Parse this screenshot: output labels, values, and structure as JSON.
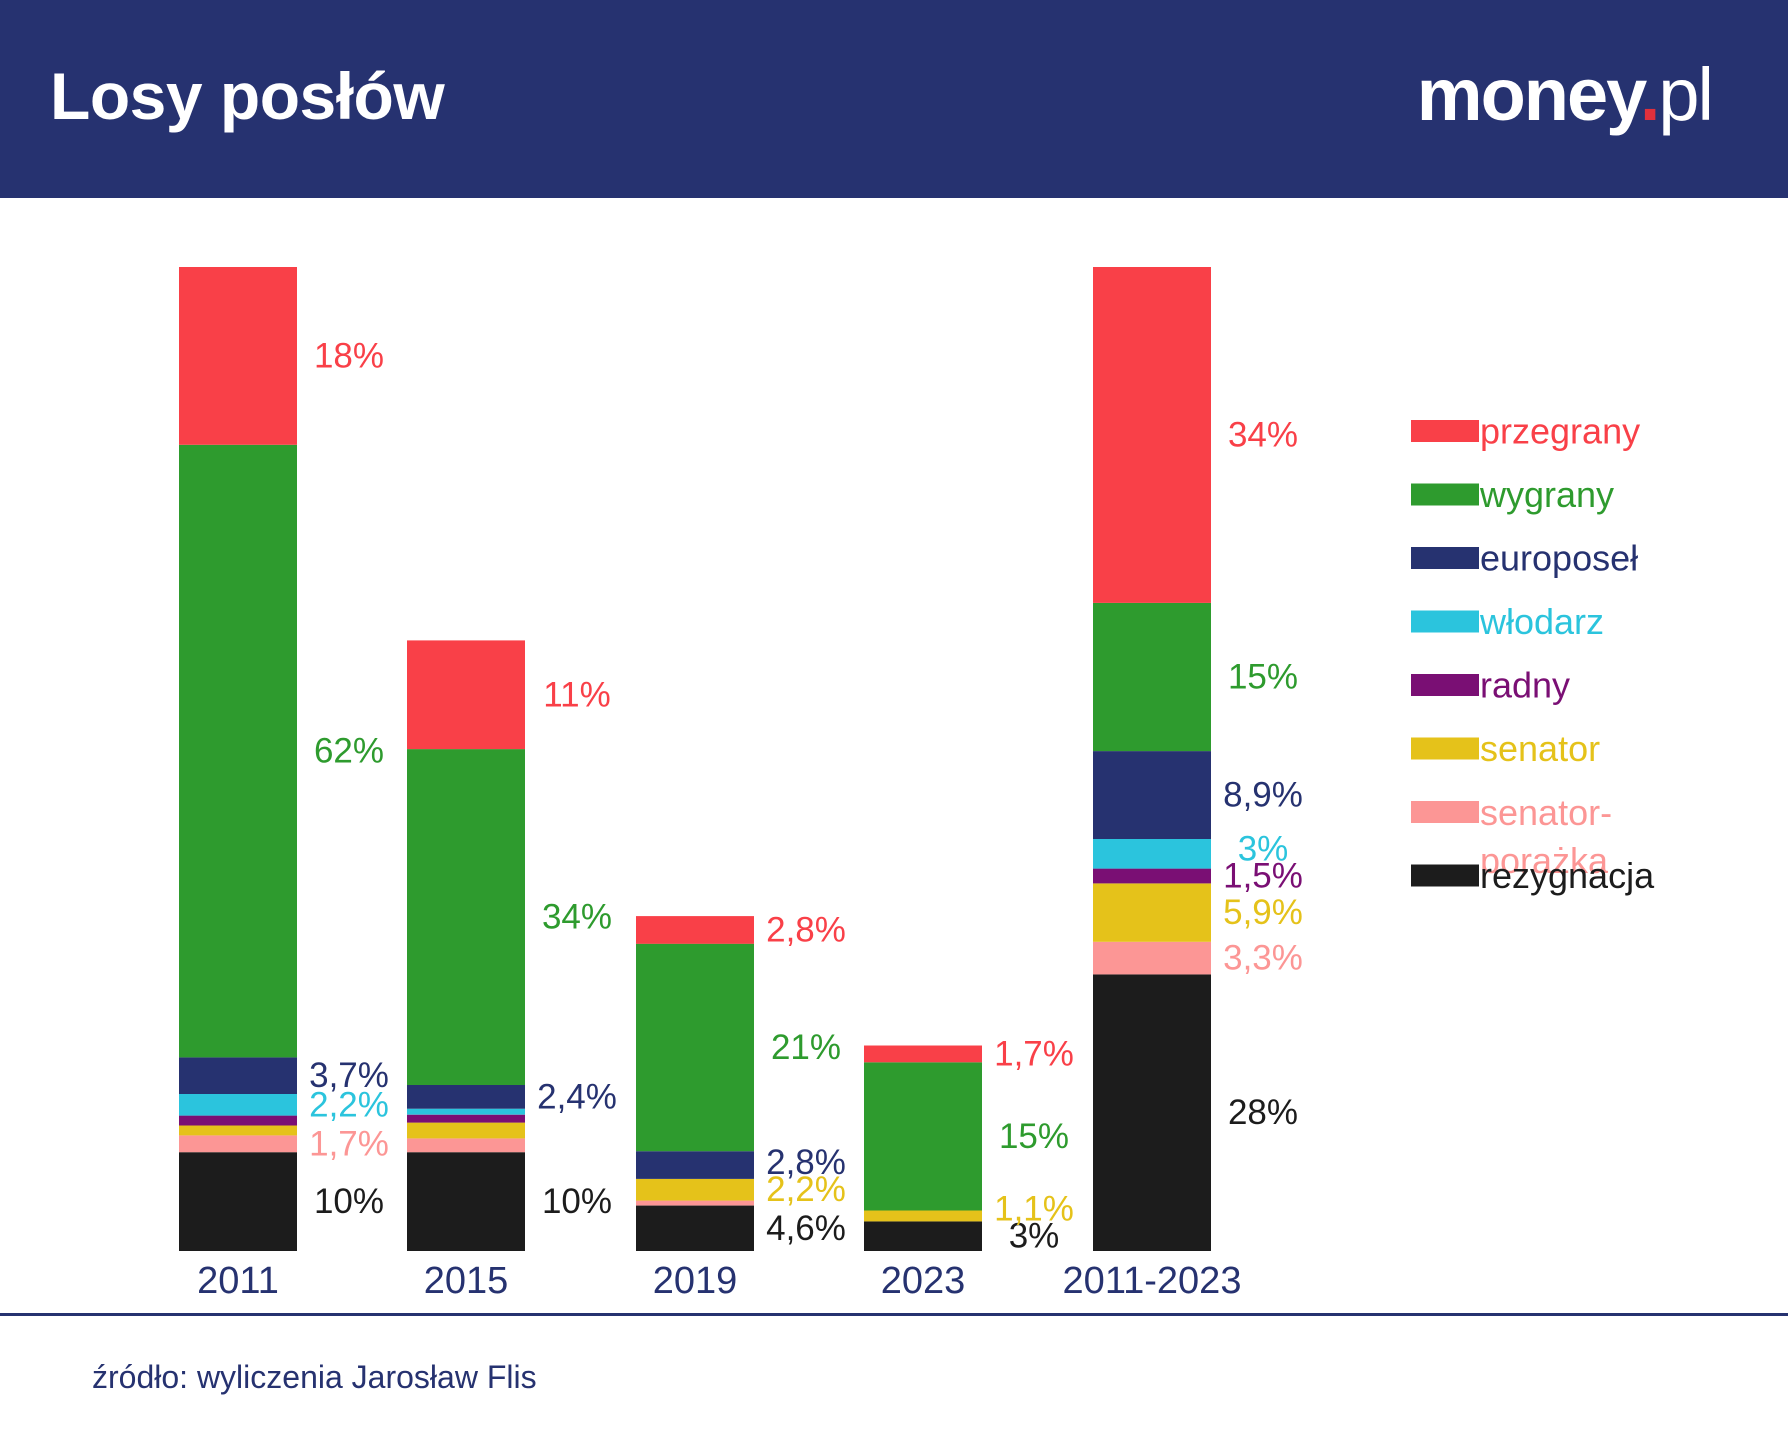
{
  "title": "Losy posłów",
  "logo": {
    "word": "money",
    "dot": ".",
    "tld": "pl"
  },
  "source": "źródło: wyliczenia Jarosław Flis",
  "colors": {
    "przegrany": "#f94048",
    "wygrany": "#2e9b2e",
    "europosel": "#263270",
    "wlodarz": "#2bc4dd",
    "radny": "#7a0f74",
    "senator": "#e5c21a",
    "senator_porazka": "#fc9695",
    "rezygnacja": "#1c1c1c",
    "header": "#263270",
    "axis_text": "#263270"
  },
  "chart_data": {
    "type": "bar",
    "stacked": true,
    "grid": false,
    "legend_position": "right",
    "categories": [
      "2011",
      "2015",
      "2019",
      "2023",
      "2011-2023"
    ],
    "series": [
      {
        "name": "przegrany",
        "key": "przegrany",
        "values": [
          18,
          11,
          2.8,
          1.7,
          34
        ],
        "labels": [
          "18%",
          "11%",
          "2,8%",
          "1,7%",
          "34%"
        ]
      },
      {
        "name": "wygrany",
        "key": "wygrany",
        "values": [
          62,
          34,
          21,
          15,
          15
        ],
        "labels": [
          "62%",
          "34%",
          "21%",
          "15%",
          "15%"
        ]
      },
      {
        "name": "europoseł",
        "key": "europosel",
        "values": [
          3.7,
          2.4,
          2.8,
          0,
          8.9
        ],
        "labels": [
          "3,7%",
          "2,4%",
          "2,8%",
          "",
          "8,9%"
        ]
      },
      {
        "name": "włodarz",
        "key": "wlodarz",
        "values": [
          2.2,
          0.6,
          0,
          0,
          3
        ],
        "labels": [
          "2,2%",
          "",
          "",
          "",
          "3%"
        ]
      },
      {
        "name": "radny",
        "key": "radny",
        "values": [
          1.0,
          0.8,
          0,
          0,
          1.5
        ],
        "labels": [
          "",
          "",
          "",
          "",
          "1,5%"
        ]
      },
      {
        "name": "senator",
        "key": "senator",
        "values": [
          1.0,
          1.6,
          2.2,
          1.1,
          5.9
        ],
        "labels": [
          "",
          "",
          "2,2%",
          "1,1%",
          "5,9%"
        ]
      },
      {
        "name": "senator-porażka",
        "key": "senator_porazka",
        "values": [
          1.7,
          1.4,
          0.5,
          0,
          3.3
        ],
        "labels": [
          "1,7%",
          "",
          "",
          "",
          "3,3%"
        ]
      },
      {
        "name": "rezygnacja",
        "key": "rezygnacja",
        "values": [
          10,
          10,
          4.6,
          3,
          28
        ],
        "labels": [
          "10%",
          "10%",
          "4,6%",
          "3%",
          "28%"
        ]
      }
    ],
    "legend": [
      "przegrany",
      "wygrany",
      "europoseł",
      "włodarz",
      "radny",
      "senator",
      "senator-porażka",
      "rezygnacja"
    ]
  }
}
